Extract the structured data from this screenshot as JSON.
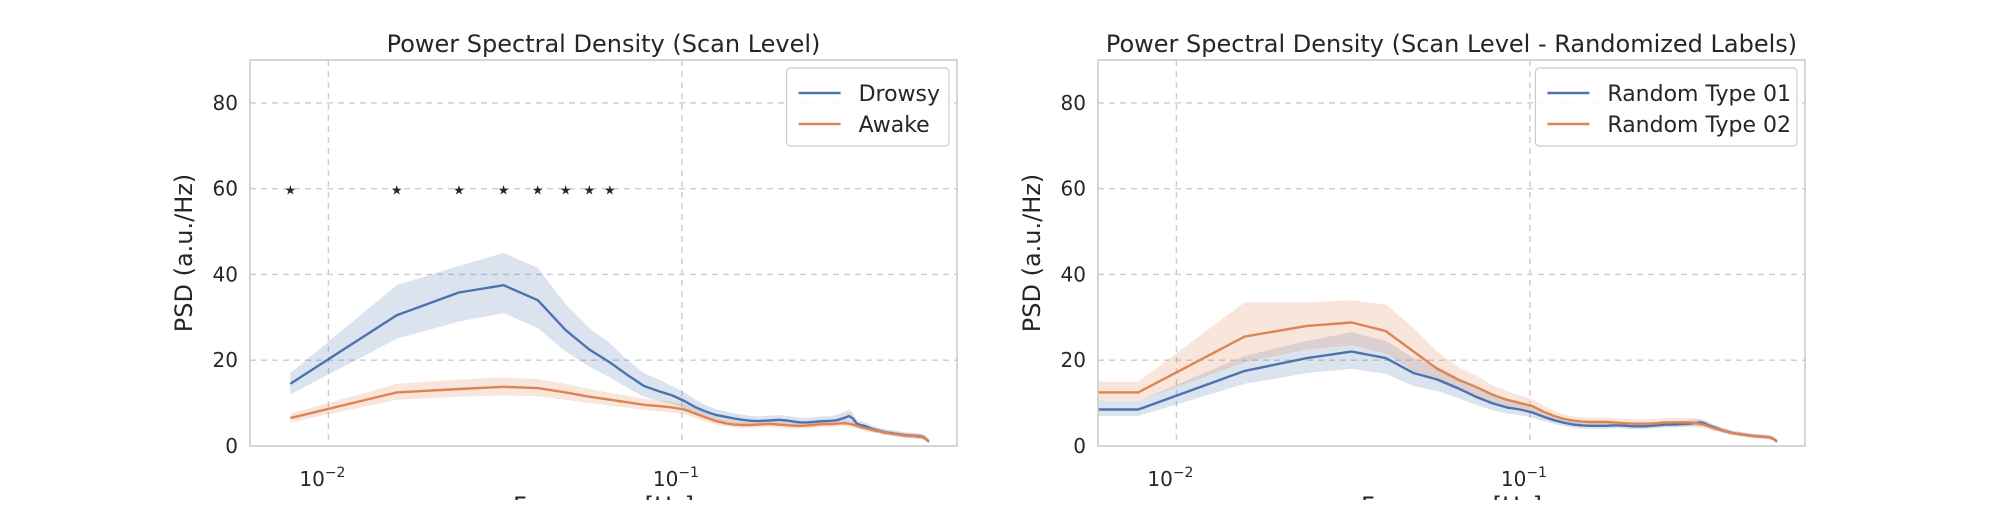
{
  "colors": {
    "blue": "#4c72b0",
    "orange": "#dd8452",
    "grid": "#cccccc",
    "frame": "#cccccc",
    "marker": "#111111"
  },
  "chart_data": [
    {
      "type": "line",
      "title": "Power Spectral Density (Scan Level)",
      "xlabel": "Frequency [Hz]",
      "ylabel": "PSD (a.u./Hz)",
      "xscale": "log",
      "xlim": [
        0.006,
        0.6
      ],
      "ylim": [
        0,
        90
      ],
      "xticks": [
        {
          "value": 0.01,
          "base": "10",
          "exp": "−2"
        },
        {
          "value": 0.1,
          "base": "10",
          "exp": "−1"
        }
      ],
      "yticks": [
        0,
        20,
        40,
        60,
        80
      ],
      "grid": true,
      "legend_position": "top-right",
      "x": [
        0.0078,
        0.0156,
        0.0234,
        0.0313,
        0.0391,
        0.0469,
        0.0547,
        0.0625,
        0.0703,
        0.0781,
        0.0859,
        0.0938,
        0.1016,
        0.1094,
        0.1172,
        0.125,
        0.1328,
        0.1406,
        0.1484,
        0.1563,
        0.1641,
        0.1719,
        0.1797,
        0.1875,
        0.1953,
        0.2031,
        0.2109,
        0.2188,
        0.2266,
        0.2344,
        0.2422,
        0.25,
        0.2578,
        0.2656,
        0.2734,
        0.2813,
        0.2891,
        0.2969,
        0.3047,
        0.3125,
        0.3203,
        0.3281,
        0.3359,
        0.3438,
        0.3516,
        0.3594,
        0.3672,
        0.375,
        0.3828,
        0.3906,
        0.3984,
        0.4063,
        0.4141,
        0.4219,
        0.4297,
        0.4375,
        0.4453,
        0.4531,
        0.4609,
        0.4688,
        0.4766,
        0.4844,
        0.4922,
        0.5
      ],
      "series": [
        {
          "name": "Drowsy",
          "color": "#4c72b0",
          "values": [
            14.5,
            30.5,
            35.8,
            37.5,
            34.0,
            27.0,
            22.5,
            19.5,
            16.5,
            14.0,
            12.8,
            11.8,
            10.5,
            9.0,
            8.0,
            7.2,
            6.8,
            6.4,
            6.1,
            5.9,
            5.8,
            5.9,
            6.0,
            6.1,
            6.0,
            5.8,
            5.6,
            5.5,
            5.5,
            5.6,
            5.7,
            5.8,
            5.8,
            5.9,
            6.0,
            6.3,
            6.6,
            7.0,
            6.4,
            5.2,
            4.9,
            4.7,
            4.4,
            4.0,
            3.8,
            3.6,
            3.4,
            3.2,
            3.1,
            3.0,
            2.9,
            2.8,
            2.7,
            2.6,
            2.5,
            2.5,
            2.4,
            2.4,
            2.3,
            2.3,
            2.2,
            2.0,
            1.5,
            1.0
          ],
          "lower": [
            12.0,
            25.0,
            29.0,
            31.0,
            27.5,
            22.0,
            18.5,
            16.0,
            13.5,
            11.5,
            10.5,
            9.8,
            8.8,
            7.5,
            6.6,
            6.0,
            5.6,
            5.3,
            5.0,
            4.9,
            4.8,
            4.9,
            5.0,
            5.1,
            5.0,
            4.8,
            4.6,
            4.5,
            4.5,
            4.6,
            4.7,
            4.8,
            4.8,
            4.9,
            5.0,
            5.2,
            5.4,
            5.7,
            5.3,
            4.4,
            4.1,
            3.9,
            3.6,
            3.3,
            3.1,
            3.0,
            2.8,
            2.6,
            2.5,
            2.4,
            2.3,
            2.2,
            2.1,
            2.0,
            1.9,
            1.9,
            1.8,
            1.8,
            1.7,
            1.7,
            1.6,
            1.4,
            1.0,
            0.6
          ],
          "upper": [
            17.0,
            37.5,
            42.0,
            45.0,
            41.5,
            33.0,
            27.5,
            24.0,
            20.0,
            17.0,
            15.5,
            14.0,
            12.5,
            10.8,
            9.5,
            8.6,
            8.1,
            7.6,
            7.3,
            7.0,
            6.9,
            7.0,
            7.1,
            7.2,
            7.1,
            6.9,
            6.7,
            6.6,
            6.6,
            6.7,
            6.8,
            6.9,
            6.9,
            7.0,
            7.2,
            7.6,
            8.0,
            8.5,
            7.6,
            6.1,
            5.8,
            5.6,
            5.3,
            4.8,
            4.6,
            4.3,
            4.1,
            3.9,
            3.8,
            3.7,
            3.6,
            3.5,
            3.4,
            3.3,
            3.2,
            3.2,
            3.1,
            3.1,
            3.0,
            3.0,
            2.9,
            2.7,
            2.1,
            1.5
          ]
        },
        {
          "name": "Awake",
          "color": "#dd8452",
          "values": [
            6.5,
            12.5,
            13.3,
            13.8,
            13.5,
            12.5,
            11.5,
            10.8,
            10.2,
            9.6,
            9.3,
            9.0,
            8.5,
            7.5,
            6.6,
            5.8,
            5.3,
            5.0,
            4.9,
            4.9,
            5.0,
            5.1,
            5.1,
            5.0,
            4.9,
            4.8,
            4.7,
            4.7,
            4.8,
            4.9,
            5.0,
            5.1,
            5.1,
            5.1,
            5.2,
            5.3,
            5.3,
            5.2,
            5.0,
            4.7,
            4.4,
            4.2,
            4.0,
            3.8,
            3.6,
            3.5,
            3.3,
            3.1,
            3.0,
            2.9,
            2.8,
            2.7,
            2.6,
            2.5,
            2.4,
            2.4,
            2.3,
            2.3,
            2.2,
            2.2,
            2.1,
            1.9,
            1.5,
            1.0
          ],
          "lower": [
            5.5,
            10.8,
            11.5,
            11.8,
            11.6,
            10.8,
            10.0,
            9.4,
            8.9,
            8.4,
            8.1,
            7.8,
            7.4,
            6.5,
            5.7,
            5.0,
            4.6,
            4.3,
            4.2,
            4.2,
            4.3,
            4.4,
            4.4,
            4.3,
            4.2,
            4.1,
            4.0,
            4.0,
            4.1,
            4.2,
            4.3,
            4.4,
            4.4,
            4.4,
            4.5,
            4.6,
            4.6,
            4.5,
            4.3,
            4.0,
            3.8,
            3.6,
            3.4,
            3.2,
            3.1,
            3.0,
            2.8,
            2.6,
            2.5,
            2.4,
            2.3,
            2.2,
            2.1,
            2.0,
            1.9,
            1.9,
            1.8,
            1.8,
            1.7,
            1.7,
            1.6,
            1.4,
            1.1,
            0.6
          ],
          "upper": [
            7.5,
            14.5,
            15.5,
            16.0,
            15.6,
            14.5,
            13.3,
            12.4,
            11.7,
            11.0,
            10.6,
            10.3,
            9.7,
            8.6,
            7.6,
            6.7,
            6.1,
            5.8,
            5.7,
            5.7,
            5.8,
            5.9,
            5.9,
            5.8,
            5.7,
            5.6,
            5.5,
            5.5,
            5.6,
            5.7,
            5.8,
            5.9,
            5.9,
            5.9,
            6.0,
            6.1,
            6.1,
            6.0,
            5.8,
            5.5,
            5.1,
            4.9,
            4.7,
            4.5,
            4.2,
            4.1,
            3.9,
            3.7,
            3.6,
            3.5,
            3.4,
            3.3,
            3.2,
            3.1,
            3.0,
            3.0,
            2.9,
            2.9,
            2.8,
            2.8,
            2.7,
            2.5,
            2.0,
            1.5
          ]
        }
      ],
      "markers": {
        "symbol": "★",
        "y": 60,
        "x": [
          0.0078,
          0.0156,
          0.0234,
          0.0313,
          0.0391,
          0.0469,
          0.0547,
          0.0625
        ]
      }
    },
    {
      "type": "line",
      "title": "Power Spectral Density (Scan Level - Randomized Labels)",
      "xlabel": "Frequency [Hz]",
      "ylabel": "PSD (a.u./Hz)",
      "xscale": "log",
      "xlim": [
        0.006,
        0.6
      ],
      "ylim": [
        0,
        90
      ],
      "xticks": [
        {
          "value": 0.01,
          "base": "10",
          "exp": "−2"
        },
        {
          "value": 0.1,
          "base": "10",
          "exp": "−1"
        }
      ],
      "yticks": [
        0,
        20,
        40,
        60,
        80
      ],
      "grid": true,
      "legend_position": "top-right",
      "x": [
        0.006,
        0.0078,
        0.0156,
        0.0234,
        0.0313,
        0.0391,
        0.0469,
        0.0547,
        0.0625,
        0.0703,
        0.0781,
        0.0859,
        0.0938,
        0.1016,
        0.1094,
        0.1172,
        0.125,
        0.1328,
        0.1406,
        0.1484,
        0.1563,
        0.1641,
        0.1719,
        0.1797,
        0.1875,
        0.1953,
        0.2031,
        0.2109,
        0.2188,
        0.2266,
        0.2344,
        0.2422,
        0.25,
        0.2578,
        0.2656,
        0.2734,
        0.2813,
        0.2891,
        0.2969,
        0.3047,
        0.3125,
        0.3203,
        0.3281,
        0.3359,
        0.3438,
        0.3516,
        0.3594,
        0.3672,
        0.375,
        0.3828,
        0.3906,
        0.3984,
        0.4063,
        0.4141,
        0.4219,
        0.4297,
        0.4375,
        0.4453,
        0.4531,
        0.4609,
        0.4688,
        0.4766,
        0.4844,
        0.4922,
        0.5
      ],
      "series": [
        {
          "name": "Random Type 01",
          "color": "#4c72b0",
          "values": [
            8.5,
            8.5,
            17.5,
            20.5,
            22.0,
            20.5,
            17.0,
            15.5,
            13.5,
            11.5,
            10.0,
            9.0,
            8.5,
            7.8,
            6.8,
            6.0,
            5.4,
            5.0,
            4.8,
            4.7,
            4.7,
            4.7,
            4.8,
            4.8,
            4.7,
            4.6,
            4.6,
            4.6,
            4.7,
            4.8,
            4.9,
            5.0,
            5.0,
            5.0,
            5.1,
            5.1,
            5.2,
            5.3,
            5.4,
            5.5,
            5.2,
            4.8,
            4.5,
            4.2,
            3.9,
            3.6,
            3.4,
            3.2,
            3.0,
            2.9,
            2.8,
            2.7,
            2.6,
            2.5,
            2.4,
            2.3,
            2.3,
            2.2,
            2.2,
            2.1,
            2.1,
            2.0,
            1.8,
            1.5,
            1.0
          ],
          "lower": [
            7.0,
            7.0,
            14.5,
            17.0,
            18.0,
            16.8,
            14.0,
            12.8,
            11.2,
            9.6,
            8.4,
            7.6,
            7.2,
            6.6,
            5.8,
            5.1,
            4.6,
            4.3,
            4.1,
            4.0,
            4.0,
            4.0,
            4.1,
            4.1,
            4.0,
            3.9,
            3.9,
            3.9,
            4.0,
            4.1,
            4.2,
            4.3,
            4.3,
            4.3,
            4.4,
            4.4,
            4.5,
            4.6,
            4.6,
            4.7,
            4.5,
            4.1,
            3.9,
            3.6,
            3.4,
            3.1,
            2.9,
            2.7,
            2.6,
            2.5,
            2.4,
            2.3,
            2.2,
            2.1,
            2.0,
            1.9,
            1.9,
            1.8,
            1.8,
            1.7,
            1.7,
            1.6,
            1.4,
            1.1,
            0.6
          ],
          "upper": [
            10.5,
            10.5,
            21.0,
            24.5,
            26.5,
            24.5,
            20.5,
            18.5,
            16.0,
            13.6,
            11.8,
            10.6,
            10.0,
            9.1,
            7.9,
            7.0,
            6.3,
            5.8,
            5.6,
            5.5,
            5.5,
            5.5,
            5.6,
            5.6,
            5.5,
            5.4,
            5.4,
            5.4,
            5.5,
            5.6,
            5.7,
            5.8,
            5.8,
            5.8,
            5.9,
            5.9,
            6.0,
            6.1,
            6.2,
            6.3,
            6.0,
            5.6,
            5.2,
            4.9,
            4.5,
            4.2,
            4.0,
            3.8,
            3.5,
            3.4,
            3.3,
            3.2,
            3.1,
            3.0,
            2.9,
            2.8,
            2.8,
            2.7,
            2.7,
            2.6,
            2.6,
            2.5,
            2.3,
            1.9,
            1.5
          ]
        },
        {
          "name": "Random Type 02",
          "color": "#dd8452",
          "values": [
            12.5,
            12.5,
            25.5,
            28.0,
            28.8,
            26.8,
            22.0,
            18.0,
            15.5,
            13.8,
            12.0,
            10.8,
            10.0,
            9.3,
            8.0,
            7.0,
            6.3,
            5.9,
            5.7,
            5.6,
            5.6,
            5.6,
            5.5,
            5.4,
            5.3,
            5.2,
            5.2,
            5.2,
            5.2,
            5.3,
            5.4,
            5.5,
            5.5,
            5.5,
            5.5,
            5.5,
            5.5,
            5.4,
            5.3,
            5.1,
            4.9,
            4.6,
            4.3,
            4.0,
            3.8,
            3.6,
            3.4,
            3.2,
            3.0,
            2.9,
            2.8,
            2.7,
            2.6,
            2.5,
            2.4,
            2.3,
            2.3,
            2.2,
            2.2,
            2.1,
            2.1,
            2.0,
            1.8,
            1.5,
            1.0
          ],
          "lower": [
            10.5,
            10.5,
            19.5,
            22.5,
            23.5,
            21.5,
            17.5,
            15.0,
            13.0,
            11.5,
            10.0,
            9.0,
            8.4,
            7.8,
            6.8,
            6.0,
            5.4,
            5.0,
            4.8,
            4.7,
            4.7,
            4.7,
            4.6,
            4.5,
            4.4,
            4.3,
            4.3,
            4.3,
            4.3,
            4.4,
            4.5,
            4.6,
            4.6,
            4.6,
            4.6,
            4.6,
            4.6,
            4.5,
            4.4,
            4.3,
            4.1,
            3.9,
            3.6,
            3.4,
            3.2,
            3.0,
            2.9,
            2.7,
            2.5,
            2.4,
            2.3,
            2.2,
            2.1,
            2.0,
            1.9,
            1.8,
            1.8,
            1.7,
            1.7,
            1.6,
            1.6,
            1.5,
            1.4,
            1.1,
            0.6
          ],
          "upper": [
            15.0,
            15.0,
            33.5,
            33.5,
            34.0,
            33.0,
            27.5,
            22.0,
            18.5,
            16.5,
            14.2,
            12.8,
            11.8,
            10.9,
            9.4,
            8.2,
            7.3,
            6.9,
            6.7,
            6.6,
            6.6,
            6.6,
            6.5,
            6.4,
            6.3,
            6.2,
            6.2,
            6.2,
            6.2,
            6.3,
            6.4,
            6.5,
            6.5,
            6.5,
            6.5,
            6.5,
            6.5,
            6.6,
            6.4,
            6.1,
            5.8,
            5.4,
            5.0,
            4.7,
            4.4,
            4.2,
            4.0,
            3.7,
            3.5,
            3.4,
            3.3,
            3.2,
            3.1,
            3.0,
            2.9,
            2.8,
            2.8,
            2.7,
            2.7,
            2.6,
            2.6,
            2.5,
            2.3,
            1.9,
            1.5
          ]
        }
      ]
    }
  ]
}
